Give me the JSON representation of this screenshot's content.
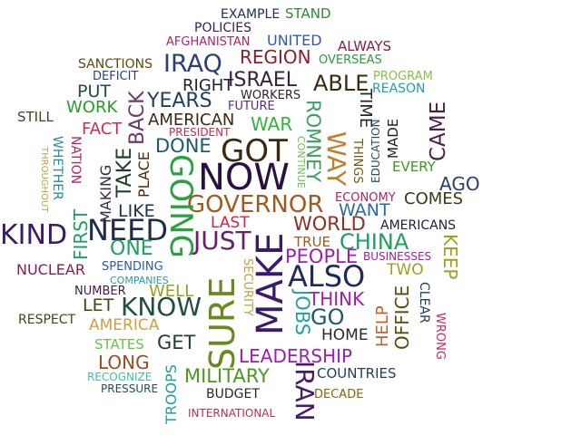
{
  "words": {
    "example": "EXAMPLE",
    "stand": "STAND",
    "policies": "POLICIES",
    "afghanistan": "AFGHANISTAN",
    "united": "UNITED",
    "always": "ALWAYS",
    "sanctions": "SANCTIONS",
    "iraq": "IRAQ",
    "region": "REGION",
    "overseas": "OVERSEAS",
    "deficit": "DEFICIT",
    "program": "PROGRAM",
    "reason": "REASON",
    "put": "PUT",
    "right": "RIGHT",
    "israel": "ISRAEL",
    "able": "ABLE",
    "workers": "WORKERS",
    "years": "YEARS",
    "work": "WORK",
    "future": "FUTURE",
    "back": "BACK",
    "still": "STILL",
    "american": "AMERICAN",
    "fact": "FACT",
    "war": "WAR",
    "romney": "ROMNEY",
    "time": "TIME",
    "education": "EDUCATION",
    "made": "MADE",
    "came": "CAME",
    "president": "PRESIDENT",
    "nation": "NATION",
    "throughout": "THROUGHOUT",
    "whether": "WHETHER",
    "done": "DONE",
    "got": "GOT",
    "continue": "CONTINUE",
    "way": "WAY",
    "things": "THINGS",
    "every": "EVERY",
    "take": "TAKE",
    "going": "GOING",
    "now": "NOW",
    "place": "PLACE",
    "ago": "AGO",
    "making": "MAKING",
    "governor": "GOVERNOR",
    "economy": "ECONOMY",
    "comes": "COMES",
    "first": "FIRST",
    "like": "LIKE",
    "want": "WANT",
    "kind": "KIND",
    "need": "NEED",
    "last": "LAST",
    "world": "WORLD",
    "americans": "AMERICANS",
    "just": "JUST",
    "make": "MAKE",
    "true": "TRUE",
    "china": "CHINA",
    "keep": "KEEP",
    "one": "ONE",
    "people": "PEOPLE",
    "businesses": "BUSINESSES",
    "nuclear": "NUCLEAR",
    "spending": "SPENDING",
    "sure": "SURE",
    "security": "SECURITY",
    "also": "ALSO",
    "two": "TWO",
    "companies": "COMPANIES",
    "number": "NUMBER",
    "well": "WELL",
    "office": "OFFICE",
    "clear": "CLEAR",
    "let": "LET",
    "know": "KNOW",
    "jobs": "JOBS",
    "think": "THINK",
    "respect": "RESPECT",
    "go": "GO",
    "help": "HELP",
    "wrong": "WRONG",
    "america": "AMERICA",
    "home": "HOME",
    "states": "STATES",
    "get": "GET",
    "long": "LONG",
    "leadership": "LEADERSHIP",
    "troops": "TROOPS",
    "iran": "IRAN",
    "military": "MILITARY",
    "countries": "COUNTRIES",
    "recognize": "RECOGNIZE",
    "pressure": "PRESSURE",
    "budget": "BUDGET",
    "decade": "DECADE",
    "international": "INTERNATIONAL"
  }
}
